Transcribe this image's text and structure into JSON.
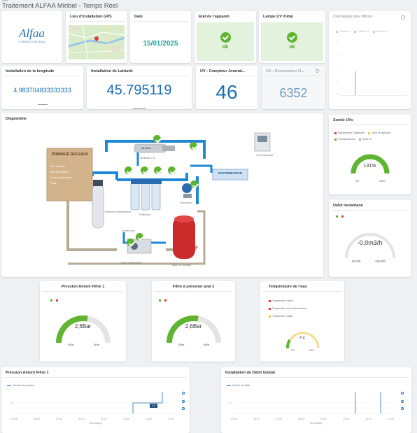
{
  "page": {
    "title": "Traitement ALFAA Miribel - Temps Réel"
  },
  "colors": {
    "gauge_green": "#5fb432",
    "gauge_track": "#e4e4e4",
    "value_blue": "#1e6eb5",
    "ok_bg": "#e3f2dc",
    "accent_red": "#d93a3a",
    "tank_red": "#cc2b2b",
    "pipe_blue": "#1e88d8",
    "pipe_tan": "#b8ab95"
  },
  "logo": {
    "name": "Alfaa",
    "tagline": "CONSULTING EAU"
  },
  "gps": {
    "title": "Lieu d'installation GPS"
  },
  "date": {
    "title": "Date",
    "value": "15/01/2025"
  },
  "appareil": {
    "title": "Etat de l'appareil",
    "value": "ok"
  },
  "lampe": {
    "title": "Lampe UV d'état",
    "value": "ok"
  },
  "colmatage": {
    "title": "Colmatage des filtres",
    "legend": [
      "Filtration 1",
      "Filtration 2",
      "Filtration 3"
    ],
    "yticks": [
      "4",
      "3",
      "2",
      "1",
      "0"
    ]
  },
  "longitude": {
    "title": "Installation de la longitude",
    "value": "4.983704833333333"
  },
  "latitude": {
    "title": "Installation de Latitude",
    "value": "45.795119"
  },
  "compteur_journalier": {
    "title": "UV : Compteur Journal...",
    "value": "46"
  },
  "decompteur": {
    "title": "UV : Décompteur H...",
    "value": "6352"
  },
  "diagramme": {
    "title": "Diagramme",
    "pompage": {
      "title": "POMPAGE DES EAUX",
      "items": [
        "Eau de pluie",
        "Eau de surface",
        "Eaux souterraines",
        "Puits"
      ]
    },
    "distribution": "DISTRIBUTION",
    "labels": {
      "reactor": "ALFAA",
      "uv": "Stérilisateur UV",
      "nitrate": "Traitement nitrate/pesticide",
      "filters": "Préfiltration",
      "surpresseur": "Surpresseur",
      "pump": "Pompe d'alimentation",
      "tank": "Ballon de stockage",
      "coffret": "Coffret électrique",
      "airstart": "Arrivée d'eau"
    }
  },
  "sonde_uv": {
    "title": "Sonde UVc",
    "legend": [
      "Maintenance Obligatoire",
      "Zone de vigilance",
      "Fonctionnement",
      "Seuil UV"
    ],
    "value_text": "131%",
    "value": 131,
    "min": "0%",
    "max": "100%"
  },
  "debit": {
    "title": "Débit instantané",
    "value_text": "-0,0m3/h",
    "min": "0m3/h",
    "max": "10m3/h"
  },
  "pression_amont": {
    "title": "Pression Amont Filtre 1",
    "value_text": "2,6Bar",
    "value": 2.6,
    "min": "0Bar",
    "max": "6Bar"
  },
  "pression_aval": {
    "title": "Filtre à pression aval 2",
    "value_text": "2,6Bar",
    "value": 2.6,
    "min": "0Bar",
    "max": "6Bar"
  },
  "temperature": {
    "title": "Température de l'eau",
    "legend": [
      "Température basse",
      "Température de fonctionnement",
      "Température haute"
    ],
    "value_text": "7°C",
    "value": 7,
    "min": "0°C",
    "max": "30°C"
  },
  "ts_pression": {
    "title": "Pression Amont Filtre 1",
    "legend": "Courbe de pression",
    "ytick": "2.6",
    "badge": "2.6",
    "xticks": [
      "03:00",
      "05:00",
      "07:00",
      "09:00",
      "11:00",
      "13:00",
      "15:00",
      "17:00"
    ],
    "xlabel": "Horodatage"
  },
  "ts_debit": {
    "title": "Installation de Débit Global",
    "legend": "Courbe de débit",
    "ytick": "0",
    "xticks": [
      "03:00",
      "05:00",
      "07:00",
      "09:00",
      "11:00",
      "13:00",
      "15:00",
      "17:00"
    ],
    "xlabel": "Horodatage"
  }
}
